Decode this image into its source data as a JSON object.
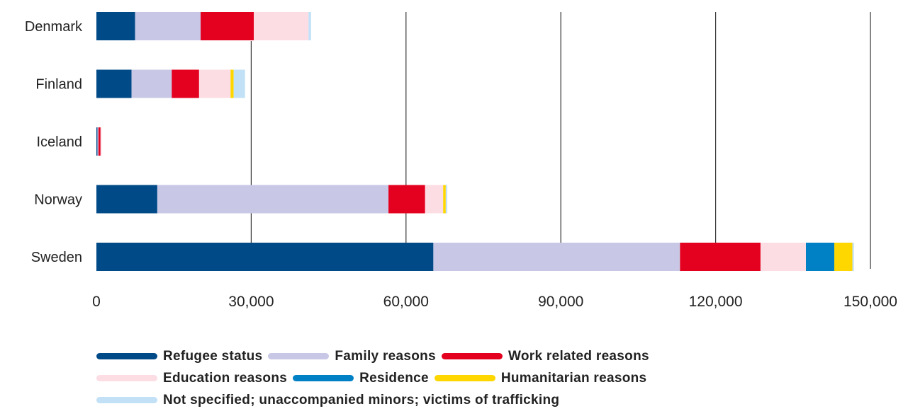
{
  "chart_data": {
    "type": "bar",
    "orientation": "horizontal",
    "stacked": true,
    "categories": [
      "Denmark",
      "Finland",
      "Iceland",
      "Norway",
      "Sweden"
    ],
    "series": [
      {
        "name": "Refugee status",
        "color": "#004a87",
        "values": [
          7500,
          6800,
          200,
          11800,
          65300
        ]
      },
      {
        "name": "Family reasons",
        "color": "#c8c8e6",
        "values": [
          12700,
          7800,
          200,
          44800,
          47800
        ]
      },
      {
        "name": "Work related reasons",
        "color": "#e4001f",
        "values": [
          10300,
          5300,
          400,
          7100,
          15600
        ]
      },
      {
        "name": "Education reasons",
        "color": "#fddde4",
        "values": [
          10600,
          6100,
          200,
          3500,
          8800
        ]
      },
      {
        "name": "Residence",
        "color": "#0081c6",
        "values": [
          0,
          0,
          0,
          0,
          5500
        ]
      },
      {
        "name": "Humanitarian reasons",
        "color": "#fed600",
        "values": [
          0,
          600,
          0,
          500,
          3500
        ]
      },
      {
        "name": "Not specified; unaccompanied minors; victims of trafficking",
        "color": "#c2e1f7",
        "values": [
          500,
          2200,
          0,
          300,
          300
        ]
      }
    ],
    "x_ticks": [
      "0",
      "30,000",
      "60,000",
      "90,000",
      "120,000",
      "150,000"
    ],
    "x_tick_values": [
      0,
      30000,
      60000,
      90000,
      120000,
      150000
    ],
    "xlim": [
      0,
      150000
    ],
    "grid": true,
    "legend_position": "bottom",
    "title": "",
    "xlabel": "",
    "ylabel": ""
  }
}
